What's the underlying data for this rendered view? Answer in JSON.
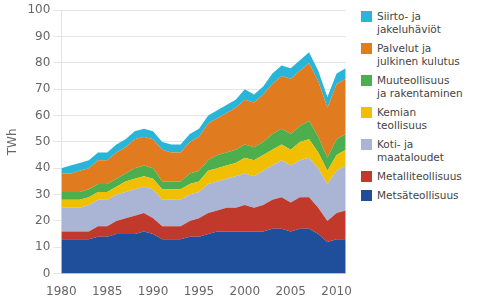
{
  "chart_data": {
    "type": "area",
    "stacked": true,
    "ylabel": "TWh",
    "x": [
      1980,
      1981,
      1982,
      1983,
      1984,
      1985,
      1986,
      1987,
      1988,
      1989,
      1990,
      1991,
      1992,
      1993,
      1994,
      1995,
      1996,
      1997,
      1998,
      1999,
      2000,
      2001,
      2002,
      2003,
      2004,
      2005,
      2006,
      2007,
      2008,
      2009,
      2010,
      2011
    ],
    "series": [
      {
        "name": "Metsäteollisuus",
        "color": "#1f4e9b",
        "values": [
          13,
          13,
          13,
          13,
          14,
          14,
          15,
          15,
          15,
          16,
          15,
          13,
          13,
          13,
          14,
          14,
          15,
          16,
          16,
          16,
          16,
          16,
          16,
          17,
          17,
          16,
          17,
          17,
          15,
          12,
          13,
          13
        ]
      },
      {
        "name": "Metalliteollisuus",
        "color": "#c0392b",
        "values": [
          3,
          3,
          3,
          3,
          4,
          4,
          5,
          6,
          7,
          7,
          6,
          5,
          5,
          5,
          6,
          7,
          8,
          8,
          9,
          9,
          10,
          9,
          10,
          11,
          12,
          11,
          12,
          12,
          10,
          8,
          10,
          11
        ]
      },
      {
        "name": "Koti- ja\nmaataloudet",
        "color": "#aab4d4",
        "values": [
          9,
          9,
          9,
          10,
          10,
          10,
          10,
          10,
          10,
          10,
          11,
          10,
          10,
          10,
          10,
          10,
          11,
          11,
          11,
          12,
          12,
          12,
          13,
          13,
          14,
          14,
          14,
          15,
          15,
          14,
          16,
          17
        ]
      },
      {
        "name": "Kemian\nteollisuus",
        "color": "#f0c000",
        "values": [
          3,
          3,
          3,
          3,
          3,
          3,
          3,
          4,
          4,
          4,
          4,
          4,
          4,
          4,
          4,
          4,
          5,
          5,
          5,
          5,
          6,
          6,
          6,
          6,
          6,
          6,
          7,
          7,
          6,
          5,
          6,
          6
        ]
      },
      {
        "name": "Muuteollisuus\nja rakentaminen",
        "color": "#4cae4c",
        "values": [
          3,
          3,
          3,
          3,
          3,
          3,
          3,
          3,
          4,
          4,
          4,
          3,
          3,
          3,
          4,
          4,
          4,
          5,
          5,
          5,
          5,
          5,
          5,
          6,
          6,
          6,
          6,
          7,
          6,
          5,
          6,
          6
        ]
      },
      {
        "name": "Palvelut ja\njulkinen kulutus",
        "color": "#e07b20",
        "values": [
          7,
          7,
          8,
          8,
          9,
          9,
          10,
          10,
          11,
          11,
          11,
          12,
          11,
          11,
          12,
          13,
          14,
          14,
          15,
          16,
          17,
          17,
          18,
          19,
          20,
          21,
          21,
          22,
          21,
          19,
          21,
          21
        ]
      },
      {
        "name": "Siirto- ja\njakeluhäviöt",
        "color": "#29b5d8",
        "values": [
          2,
          3,
          3,
          3,
          3,
          3,
          3,
          3,
          3,
          3,
          3,
          3,
          3,
          3,
          3,
          3,
          3,
          3,
          3,
          3,
          4,
          3,
          3,
          4,
          4,
          4,
          4,
          4,
          4,
          4,
          4,
          4
        ]
      }
    ],
    "xlim": [
      1980,
      2011
    ],
    "xticks": [
      1980,
      1985,
      1990,
      1995,
      2000,
      2005,
      2010
    ],
    "ylim": [
      0,
      100
    ],
    "yticks": [
      0,
      10,
      20,
      30,
      40,
      50,
      60,
      70,
      80,
      90,
      100
    ],
    "grid": "y",
    "legend": "right"
  }
}
